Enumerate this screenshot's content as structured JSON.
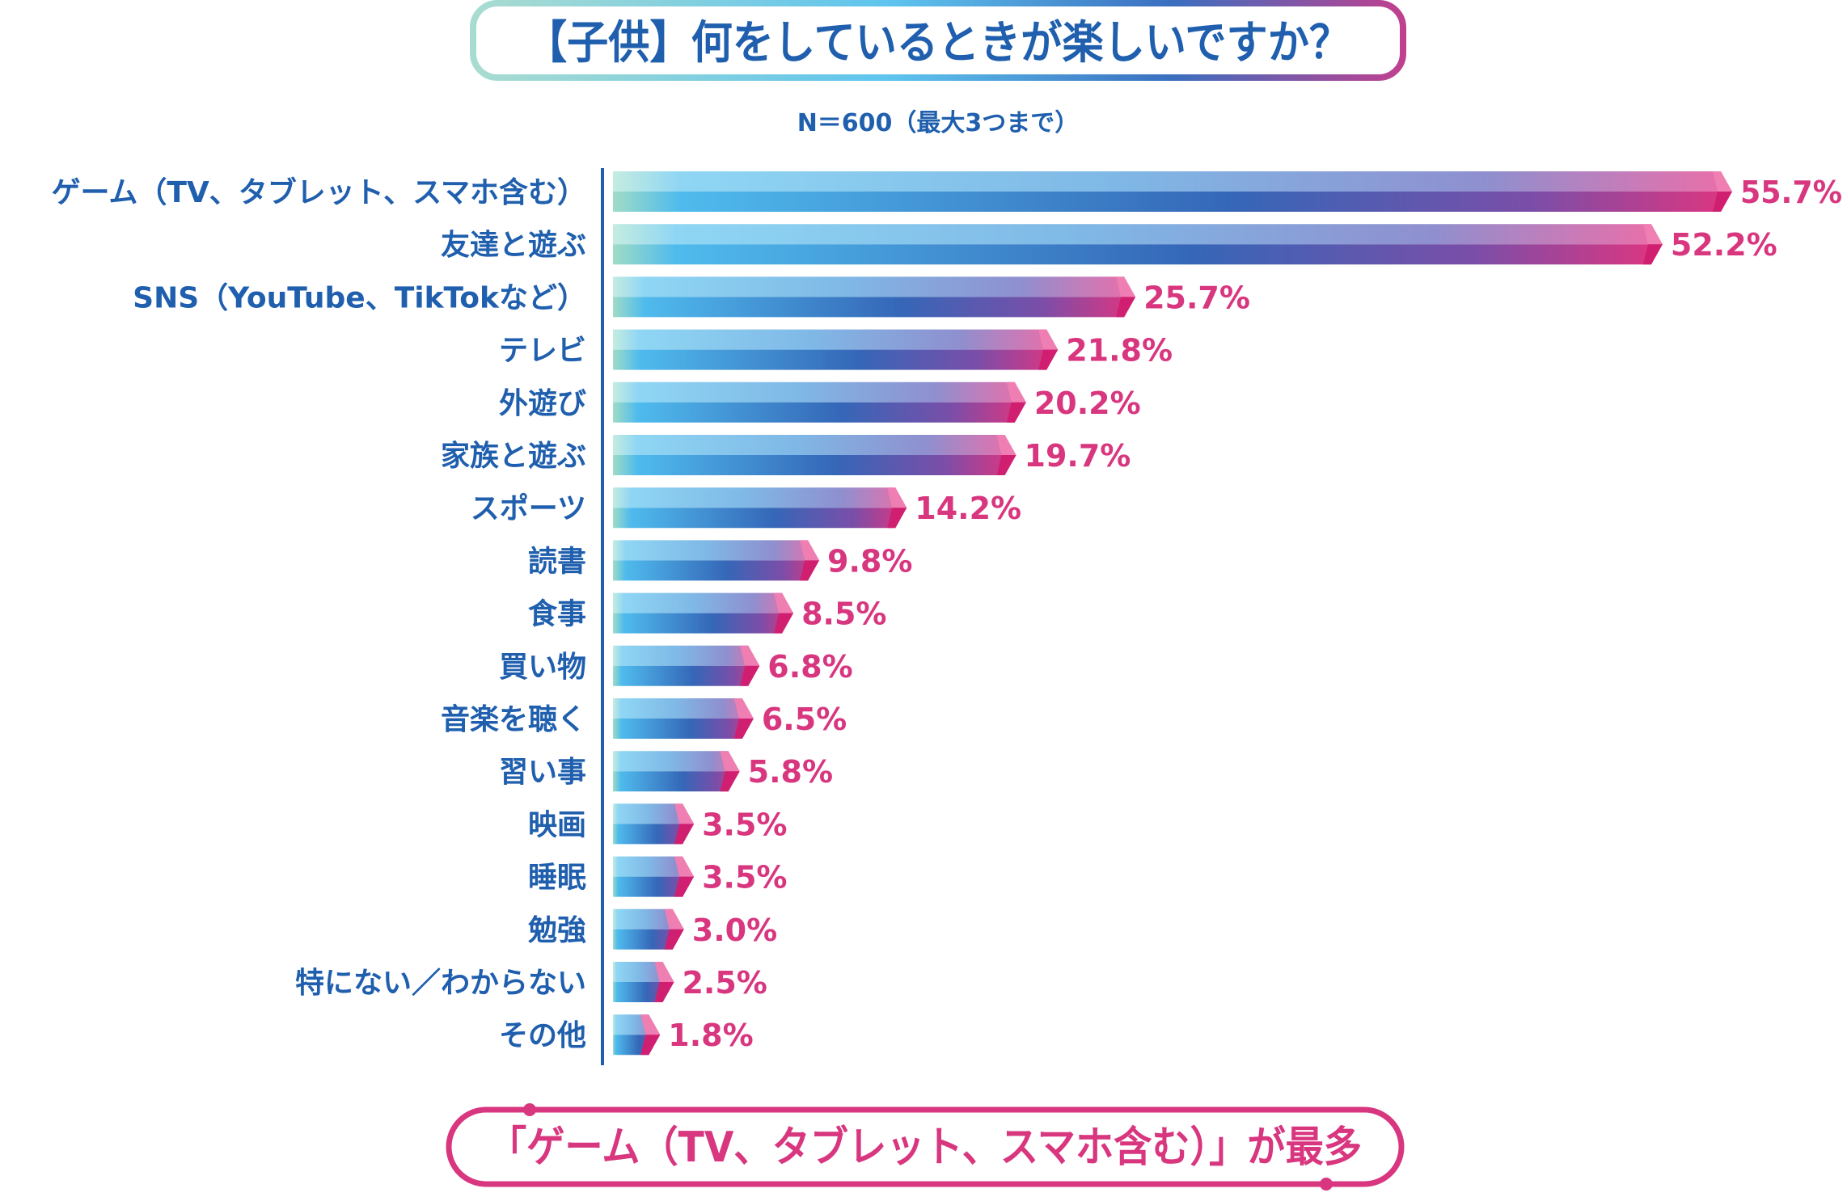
{
  "chart_data": {
    "type": "bar",
    "orientation": "horizontal",
    "title": "【子供】何をしているときが楽しいですか？",
    "subtitle": "N＝600（最大3つまで）",
    "categories": [
      "ゲーム（TV、タブレット、スマホ含む）",
      "友達と遊ぶ",
      "SNS（YouTube、TikTokなど）",
      "テレビ",
      "外遊び",
      "家族と遊ぶ",
      "スポーツ",
      "読書",
      "食事",
      "買い物",
      "音楽を聴く",
      "習い事",
      "映画",
      "睡眠",
      "勉強",
      "特にない／わからない",
      "その他"
    ],
    "values": [
      55.7,
      52.2,
      25.7,
      21.8,
      20.2,
      19.7,
      14.2,
      9.8,
      8.5,
      6.8,
      6.5,
      5.8,
      3.5,
      3.5,
      3.0,
      2.5,
      1.8
    ],
    "value_labels": [
      "55.7%",
      "52.2%",
      "25.7%",
      "21.8%",
      "20.2%",
      "19.7%",
      "14.2%",
      "9.8%",
      "8.5%",
      "6.8%",
      "6.5%",
      "5.8%",
      "3.5%",
      "3.5%",
      "3.0%",
      "2.5%",
      "1.8%"
    ],
    "xlim": [
      0,
      55.7
    ],
    "grid": false,
    "footer_note": "「ゲーム（TV、タブレット、スマホ含む）」が最多",
    "colors": {
      "text_blue": "#1f5fae",
      "value_pink": "#d8367f",
      "bar_mint": "#b6e3d4",
      "bar_sky": "#5ec4ee",
      "bar_blue": "#3a6fc0",
      "bar_pink": "#e0357f",
      "title_border_start": "#a9dcd0",
      "title_border_end": "#c0408f"
    }
  }
}
